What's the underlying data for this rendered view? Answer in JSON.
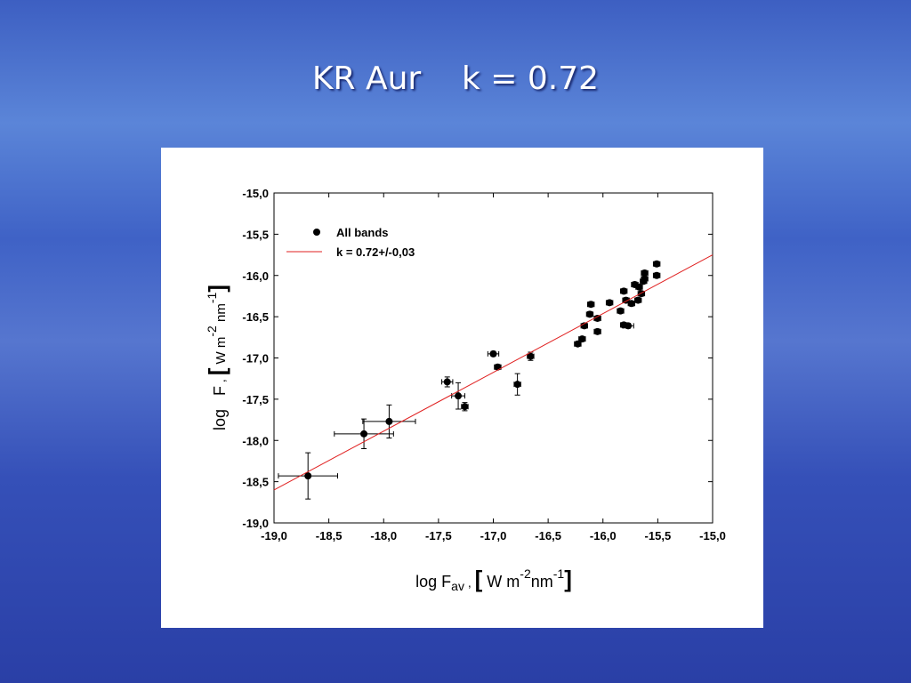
{
  "chart_data": {
    "type": "scatter",
    "title": "KR Aur    k = 0.72",
    "x_label": {
      "main": "log F",
      "sub": "av",
      "sep": " , ",
      "open": "[",
      "unit1": " W m",
      "exp1": "-2",
      "unit2": "nm",
      "exp2": "-1",
      "close": "]"
    },
    "y_label": {
      "main": "log   F",
      "sep": " , ",
      "open": "[",
      "unit1": " W m",
      "exp1": "-2",
      "unit2": " nm",
      "exp2": "-1",
      "close": "]"
    },
    "xlim": [
      -19,
      -15
    ],
    "ylim": [
      -19,
      -15
    ],
    "xticks": [
      {
        "value": -19,
        "label": "-19,0"
      },
      {
        "value": -18.5,
        "label": "-18,5"
      },
      {
        "value": -18,
        "label": "-18,0"
      },
      {
        "value": -17.5,
        "label": "-17,5"
      },
      {
        "value": -17,
        "label": "-17,0"
      },
      {
        "value": -16.5,
        "label": "-16,5"
      },
      {
        "value": -16,
        "label": "-16,0"
      },
      {
        "value": -15.5,
        "label": "-15,5"
      },
      {
        "value": -15,
        "label": "-15,0"
      }
    ],
    "yticks": [
      {
        "value": -15,
        "label": "-15,0"
      },
      {
        "value": -15.5,
        "label": "-15,5"
      },
      {
        "value": -16,
        "label": "-16,0"
      },
      {
        "value": -16.5,
        "label": "-16,5"
      },
      {
        "value": -17,
        "label": "-17,0"
      },
      {
        "value": -17.5,
        "label": "-17,5"
      },
      {
        "value": -18,
        "label": "-18,0"
      },
      {
        "value": -18.5,
        "label": "-18,5"
      },
      {
        "value": -19,
        "label": "-19,0"
      }
    ],
    "legend": "upper left",
    "series": [
      {
        "name": "All bands",
        "type": "scatter",
        "color": "#000000",
        "x": [
          -18.69,
          -18.18,
          -17.95,
          -17.42,
          -17.32,
          -17.26,
          -17.0,
          -16.96,
          -16.78,
          -16.66,
          -16.23,
          -16.19,
          -16.17,
          -16.12,
          -16.11,
          -16.05,
          -16.05,
          -15.94,
          -15.84,
          -15.81,
          -15.77,
          -15.81,
          -15.79,
          -15.74,
          -15.71,
          -15.68,
          -15.67,
          -15.65,
          -15.63,
          -15.62,
          -15.62,
          -15.51,
          -15.51
        ],
        "values": [
          -18.43,
          -17.92,
          -17.77,
          -17.29,
          -17.46,
          -17.59,
          -16.95,
          -17.11,
          -17.32,
          -16.98,
          -16.83,
          -16.77,
          -16.61,
          -16.47,
          -16.35,
          -16.52,
          -16.68,
          -16.33,
          -16.43,
          -16.6,
          -16.61,
          -16.19,
          -16.3,
          -16.34,
          -16.11,
          -16.3,
          -16.14,
          -16.22,
          -16.07,
          -15.97,
          -16.04,
          -16.0,
          -15.86
        ],
        "xerr": [
          0.27,
          0.27,
          0.24,
          0.05,
          0.06,
          0.03,
          0.05,
          0.03,
          0.03,
          0.03,
          0.03,
          0.03,
          0.03,
          0.03,
          0.03,
          0.03,
          0.03,
          0.03,
          0.03,
          0.03,
          0.05,
          0.03,
          0.03,
          0.03,
          0.03,
          0.03,
          0.03,
          0.03,
          0.03,
          0.03,
          0.03,
          0.03,
          0.03
        ],
        "yerr": [
          0.28,
          0.18,
          0.2,
          0.06,
          0.16,
          0.05,
          0.03,
          0.03,
          0.13,
          0.05,
          0.03,
          0.03,
          0.03,
          0.03,
          0.03,
          0.03,
          0.03,
          0.03,
          0.03,
          0.03,
          0.03,
          0.03,
          0.03,
          0.03,
          0.03,
          0.03,
          0.03,
          0.03,
          0.03,
          0.03,
          0.03,
          0.03,
          0.03
        ]
      },
      {
        "name": "k = 0.72+/-0,03",
        "type": "line",
        "color": "#e02020",
        "x": [
          -19,
          -15
        ],
        "values": [
          -18.6,
          -15.75
        ]
      }
    ]
  }
}
